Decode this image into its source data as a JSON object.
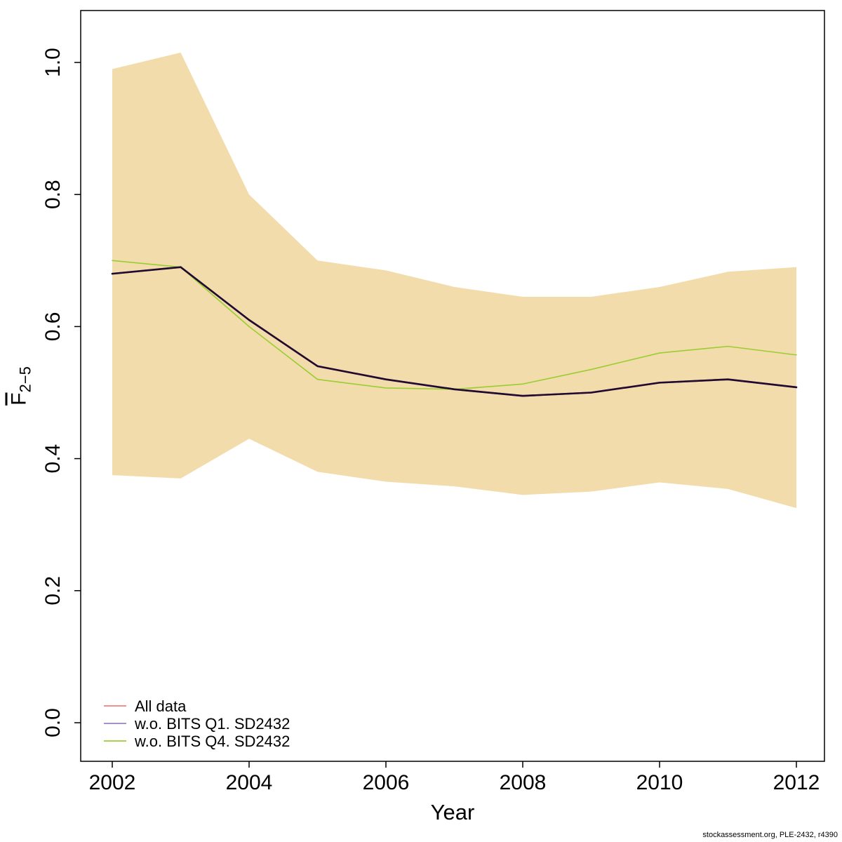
{
  "chart_data": {
    "type": "line",
    "x": [
      2002,
      2003,
      2004,
      2005,
      2006,
      2007,
      2008,
      2009,
      2010,
      2011,
      2012
    ],
    "series": [
      {
        "name": "All data",
        "legend_color": "#f08080",
        "line_color": "#e05252",
        "width": 2.6,
        "z": 1,
        "values": [
          0.68,
          0.69,
          0.61,
          0.54,
          0.52,
          0.505,
          0.495,
          0.5,
          0.515,
          0.52,
          0.508
        ]
      },
      {
        "name": "w.o. BITS Q1. SD2432",
        "legend_color": "#9b7fc0",
        "line_color": "#1c0b33",
        "width": 2.6,
        "z": 3,
        "values": [
          0.68,
          0.69,
          0.61,
          0.54,
          0.52,
          0.505,
          0.495,
          0.5,
          0.515,
          0.52,
          0.508
        ]
      },
      {
        "name": "w.o. BITS Q4. SD2432",
        "legend_color": "#9acd32",
        "line_color": "#9acd32",
        "width": 1.6,
        "z": 2,
        "values": [
          0.7,
          0.69,
          0.6,
          0.52,
          0.507,
          0.505,
          0.513,
          0.535,
          0.56,
          0.57,
          0.557
        ]
      }
    ],
    "band": {
      "color": "#f3dcab",
      "upper": [
        0.99,
        1.015,
        0.8,
        0.7,
        0.685,
        0.66,
        0.645,
        0.645,
        0.66,
        0.683,
        0.69
      ],
      "lower": [
        0.375,
        0.37,
        0.43,
        0.38,
        0.365,
        0.358,
        0.345,
        0.35,
        0.364,
        0.354,
        0.325
      ]
    },
    "xlabel": "Year",
    "ylabel_main": "F",
    "ylabel_sub": "2−5",
    "xlim": [
      2002,
      2012
    ],
    "ylim": [
      0.0,
      1.0
    ],
    "xticks": [
      2002,
      2004,
      2006,
      2008,
      2010,
      2012
    ],
    "yticks": [
      0.0,
      0.2,
      0.4,
      0.6,
      0.8,
      1.0
    ],
    "grid": false,
    "legend_position": "bottom-left"
  },
  "footer": {
    "text": "stockassessment.org, PLE-2432, r4390"
  }
}
